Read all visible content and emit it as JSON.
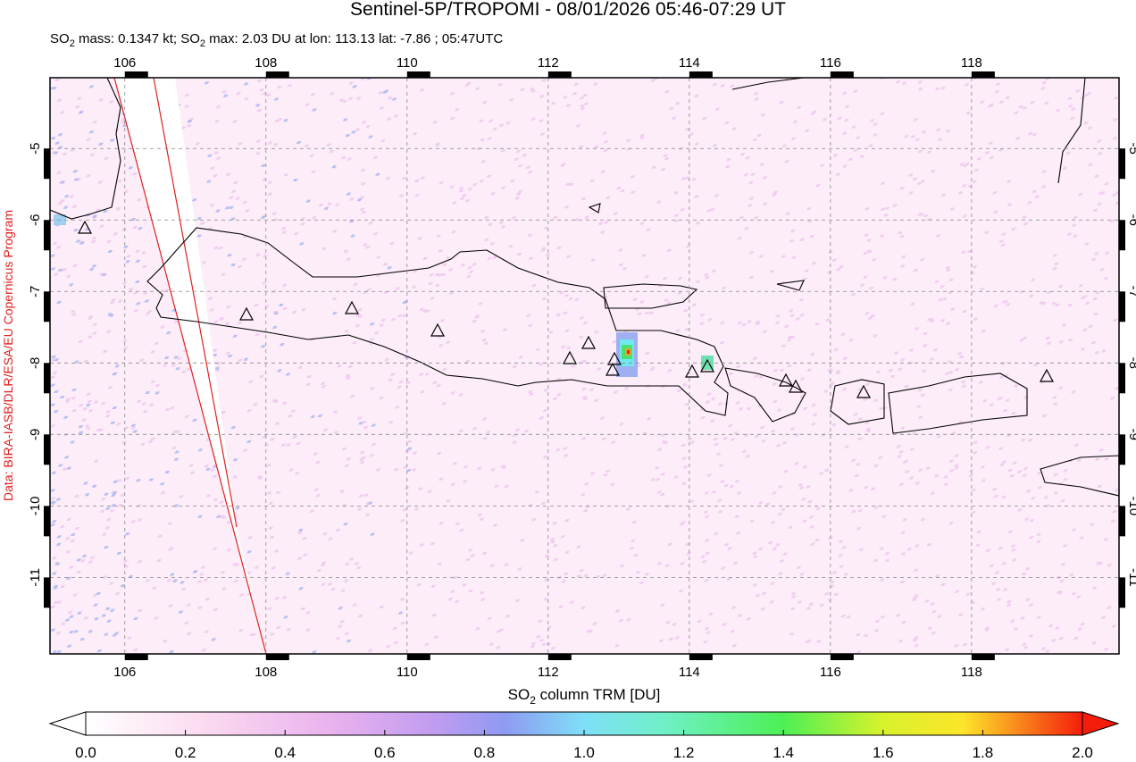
{
  "header": {
    "title": "Sentinel-5P/TROPOMI - 08/01/2026 05:46-07:29 UT",
    "subtitle": [
      "SO",
      "2",
      " mass: 0.1347 kt; SO",
      "2",
      " max: 2.03 DU at lon: 113.13 lat: -7.86 ; 05:47UTC"
    ]
  },
  "map": {
    "lon_range": [
      104.94,
      120.09
    ],
    "lat_range": [
      -4.01,
      -12.07
    ],
    "lon_ticks": [
      106,
      108,
      110,
      112,
      114,
      116,
      118
    ],
    "lat_ticks": [
      -5,
      -6,
      -7,
      -8,
      -9,
      -10,
      -11
    ]
  },
  "credit": "Data: BIRA-IASB/DLR/ESA/EU Copernicus Program",
  "colorbar": {
    "label": [
      "SO",
      "2",
      " column TRM [DU]"
    ],
    "ticks": [
      {
        "value": 0,
        "label": "0.0"
      },
      {
        "value": 0.2,
        "label": "0.2"
      },
      {
        "value": 0.4,
        "label": "0.4"
      },
      {
        "value": 0.6,
        "label": "0.6"
      },
      {
        "value": 0.8,
        "label": "0.8"
      },
      {
        "value": 1.0,
        "label": "1.0"
      },
      {
        "value": 1.2,
        "label": "1.2"
      },
      {
        "value": 1.4,
        "label": "1.4"
      },
      {
        "value": 1.6,
        "label": "1.6"
      },
      {
        "value": 1.8,
        "label": "1.8"
      },
      {
        "value": 2.0,
        "label": "2.0"
      }
    ]
  }
}
